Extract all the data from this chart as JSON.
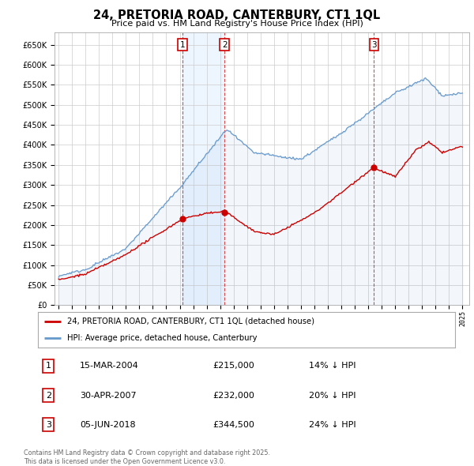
{
  "title": "24, PRETORIA ROAD, CANTERBURY, CT1 1QL",
  "subtitle": "Price paid vs. HM Land Registry's House Price Index (HPI)",
  "ylim": [
    0,
    680000
  ],
  "yticks": [
    0,
    50000,
    100000,
    150000,
    200000,
    250000,
    300000,
    350000,
    400000,
    450000,
    500000,
    550000,
    600000,
    650000
  ],
  "sale_year_nums": [
    2004.21,
    2007.33,
    2018.43
  ],
  "sale_prices": [
    215000,
    232000,
    344500
  ],
  "sale_labels": [
    "1",
    "2",
    "3"
  ],
  "legend_red": "24, PRETORIA ROAD, CANTERBURY, CT1 1QL (detached house)",
  "legend_blue": "HPI: Average price, detached house, Canterbury",
  "table_entries": [
    {
      "num": "1",
      "date": "15-MAR-2004",
      "price": "£215,000",
      "pct": "14% ↓ HPI"
    },
    {
      "num": "2",
      "date": "30-APR-2007",
      "price": "£232,000",
      "pct": "20% ↓ HPI"
    },
    {
      "num": "3",
      "date": "05-JUN-2018",
      "price": "£344,500",
      "pct": "24% ↓ HPI"
    }
  ],
  "footer": "Contains HM Land Registry data © Crown copyright and database right 2025.\nThis data is licensed under the Open Government Licence v3.0.",
  "red_color": "#cc0000",
  "blue_color": "#6699cc",
  "blue_fill_color": "#ddeeff",
  "bg_color": "#ffffff",
  "grid_color": "#cccccc",
  "shade_between_1_2": true
}
